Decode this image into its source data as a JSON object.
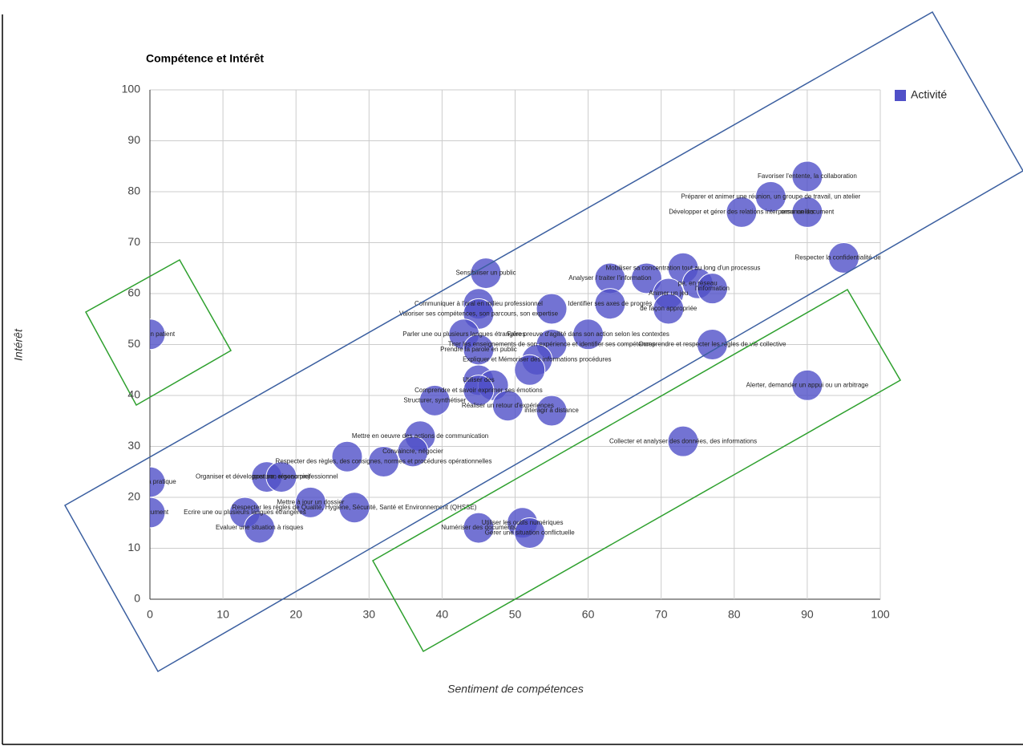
{
  "chart_data": {
    "type": "bubble",
    "title": "Compétence et Intérêt",
    "x_label": "Sentiment de compétences",
    "y_label": "Intérêt",
    "xlim": [
      0,
      100
    ],
    "xticks": [
      0,
      10,
      20,
      30,
      40,
      50,
      60,
      70,
      80,
      90,
      100
    ],
    "ylim": [
      0,
      100
    ],
    "yticks": [
      0,
      10,
      20,
      30,
      40,
      50,
      60,
      70,
      80,
      90,
      100
    ],
    "grid": true,
    "legend": "right",
    "series": [
      {
        "name": "Activité",
        "color": "#5050c8",
        "x": [
          0,
          90,
          85,
          81,
          90,
          95,
          73,
          63,
          68,
          75,
          77,
          71,
          63,
          71,
          46,
          45,
          45,
          55,
          43,
          60,
          77,
          55,
          45,
          53,
          52,
          45,
          47,
          45,
          39,
          49,
          55,
          90,
          37,
          36,
          73,
          27,
          32,
          16,
          18,
          0,
          0,
          13,
          22,
          28,
          15,
          45,
          51,
          52
        ],
        "values": [
          52,
          83,
          79,
          76,
          76,
          67,
          65,
          63,
          63,
          62,
          61,
          60,
          58,
          57,
          64,
          58,
          56,
          57,
          52,
          52,
          50,
          50,
          49,
          47,
          45,
          43,
          42,
          41,
          39,
          38,
          37,
          42,
          32,
          29,
          31,
          28,
          27,
          24,
          24,
          23,
          17,
          17,
          19,
          18,
          14,
          14,
          15,
          13
        ],
        "labels": [
          "pagner un patient",
          "Favoriser l'entente, la collaboration",
          "Préparer et animer une réunion, un groupe de travail, un atelier",
          "Développer et gérer des relations interpersonnelles",
          "orme un document",
          "Respecter la confidentialité des inf",
          "Mobiliser sa concentration tout au long d'un processus",
          "Analyser / traiter l'information",
          null,
          "pe, en réseau",
          "l'information",
          "Animer un jeu",
          "Identifier ses axes de progrès",
          "de façon appropriée",
          "Sensibiliser un public",
          "Communiquer à l'oral en milieu professionnel",
          "Valoriser ses compétences, son parcours, son expertise",
          null,
          "Parler une ou plusieurs langues étrangères",
          "Faire preuve d'agilité dans son action selon les contextes",
          "Comprendre et respecter les règles de vie collective",
          "Tirer les enseignements de son expérience et identifier ses compétences",
          "Prendre la parole en public",
          "Expliquer et Mémoriser des informations procédures",
          null,
          "Utiliser des",
          null,
          "Comprendre et savoir exprimer ses émotions",
          "Structurer, synthétiser",
          "Réaliser un retour d'expériences",
          "interagir à distance",
          "Alerter, demander un appui ou un arbitrage",
          "Mettre en oeuvre des actions de communication",
          "Convaincre, négocier",
          "Collecter et analyser des données, des informations",
          null,
          "Respecter des règles, des consignes, normes et procédures opérationnelles",
          "Organiser et développer son réseau professionnel",
          "posture, ergonomie)",
          "timiser sa pratique",
          "ne document",
          "Ecrire une ou plusieurs langues étrangères",
          "Mettre à jour un dossier",
          "Respecter les règles de Qualité, Hygiène, Sécurité, Santé et Environnement (QHSSE)",
          "Evaluer une situation à risques",
          "Numériser des documents",
          "Utiliser les outils numériques",
          "Gérer une situation conflictuelle"
        ]
      }
    ]
  }
}
